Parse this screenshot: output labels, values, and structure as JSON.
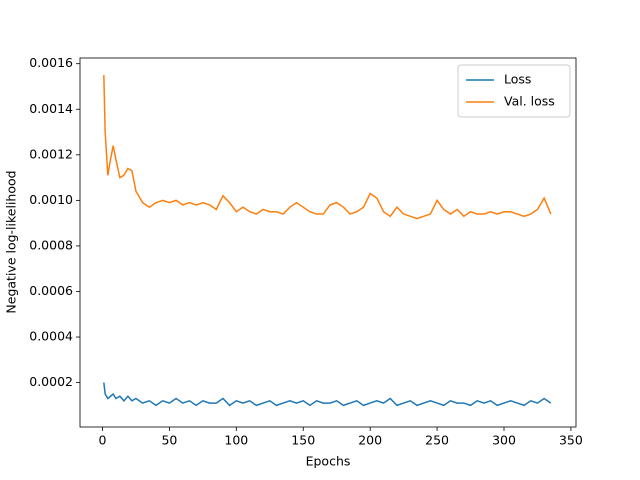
{
  "chart_data": {
    "type": "line",
    "xlabel": "Epochs",
    "ylabel": "Negative log-likelihood",
    "x": [
      1,
      2,
      4,
      6,
      8,
      10,
      13,
      16,
      19,
      22,
      25,
      30,
      35,
      40,
      45,
      50,
      55,
      60,
      65,
      70,
      75,
      80,
      85,
      90,
      95,
      100,
      105,
      110,
      115,
      120,
      125,
      130,
      135,
      140,
      145,
      150,
      155,
      160,
      165,
      170,
      175,
      180,
      185,
      190,
      195,
      200,
      205,
      210,
      215,
      220,
      225,
      230,
      235,
      240,
      245,
      250,
      255,
      260,
      265,
      270,
      275,
      280,
      285,
      290,
      295,
      300,
      305,
      310,
      315,
      320,
      325,
      330,
      335
    ],
    "series": [
      {
        "name": "Loss",
        "color": "#1f77b4",
        "values": [
          0.0002,
          0.00015,
          0.00013,
          0.00014,
          0.00015,
          0.00013,
          0.00014,
          0.00012,
          0.00014,
          0.00012,
          0.00013,
          0.00011,
          0.00012,
          0.0001,
          0.00012,
          0.00011,
          0.00013,
          0.00011,
          0.00012,
          0.0001,
          0.00012,
          0.00011,
          0.00011,
          0.00013,
          0.0001,
          0.00012,
          0.00011,
          0.00012,
          0.0001,
          0.00011,
          0.00012,
          0.0001,
          0.00011,
          0.00012,
          0.00011,
          0.00012,
          0.0001,
          0.00012,
          0.00011,
          0.00011,
          0.00012,
          0.0001,
          0.00011,
          0.00012,
          0.0001,
          0.00011,
          0.00012,
          0.00011,
          0.00013,
          0.0001,
          0.00011,
          0.00012,
          0.0001,
          0.00011,
          0.00012,
          0.00011,
          0.0001,
          0.00012,
          0.00011,
          0.00011,
          0.0001,
          0.00012,
          0.00011,
          0.00012,
          0.0001,
          0.00011,
          0.00012,
          0.00011,
          0.0001,
          0.00012,
          0.00011,
          0.00013,
          0.00011
        ]
      },
      {
        "name": "Val. loss",
        "color": "#ff7f0e",
        "values": [
          0.00155,
          0.0013,
          0.00111,
          0.00118,
          0.00124,
          0.00118,
          0.0011,
          0.00111,
          0.00114,
          0.00113,
          0.00104,
          0.00099,
          0.00097,
          0.00099,
          0.001,
          0.00099,
          0.001,
          0.00098,
          0.00099,
          0.00098,
          0.00099,
          0.00098,
          0.00096,
          0.00102,
          0.00099,
          0.00095,
          0.00097,
          0.00095,
          0.00094,
          0.00096,
          0.00095,
          0.00095,
          0.00094,
          0.00097,
          0.00099,
          0.00097,
          0.00095,
          0.00094,
          0.00094,
          0.00098,
          0.00099,
          0.00097,
          0.00094,
          0.00095,
          0.00097,
          0.00103,
          0.00101,
          0.00095,
          0.00093,
          0.00097,
          0.00094,
          0.00093,
          0.00092,
          0.00093,
          0.00094,
          0.001,
          0.00096,
          0.00094,
          0.00096,
          0.00093,
          0.00095,
          0.00094,
          0.00094,
          0.00095,
          0.00094,
          0.00095,
          0.00095,
          0.00094,
          0.00093,
          0.00094,
          0.00096,
          0.00101,
          0.00094
        ]
      }
    ],
    "xlim": [
      -16.8,
      353.8
    ],
    "xticks": [
      0,
      50,
      100,
      150,
      200,
      250,
      300,
      350
    ],
    "ylim": [
      5e-06,
      0.001625
    ],
    "yticks": [
      0.0002,
      0.0004,
      0.0006,
      0.0008,
      {
        "value": 0.001,
        "label": "0.0010"
      },
      0.0012,
      0.0014,
      0.0016
    ],
    "legend": "upper right"
  }
}
